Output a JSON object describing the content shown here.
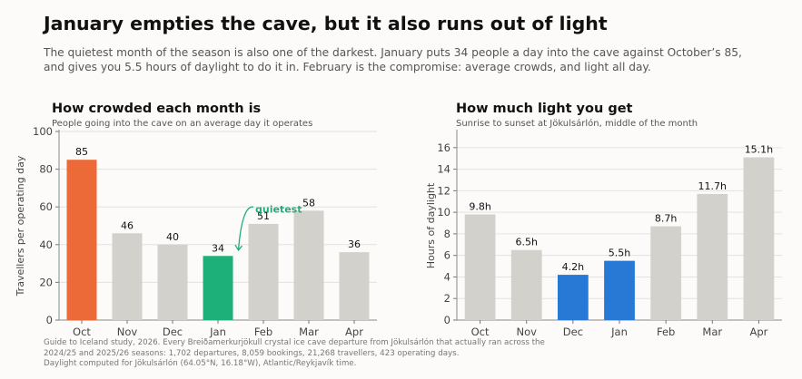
{
  "headline": "January empties the cave, but it also runs out of light",
  "dek": [
    "The quietest month of the season is also one of the darkest. January puts 34 people a day into the cave against October’s 85,",
    "and gives you 5.5 hours of daylight to do it in. February is the compromise: average crowds, and light all day."
  ],
  "footer": [
    "Guide to Iceland study, 2026. Every Breiðamerkurjökull crystal ice cave departure from Jökulsárlón that actually ran across the",
    "2024/25 and 2025/26 seasons: 1,702 departures, 8,059 bookings, 21,268 travellers, 423 operating days.",
    "Daylight computed for Jökulsárlón (64.05°N, 16.18°W), Atlantic/Reykjavík time."
  ],
  "colors": {
    "neutral": "#d3d1cc",
    "orange": "#ec6a37",
    "green": "#1db079",
    "blue": "#2878d6",
    "grid": "#e2e2e2"
  },
  "chart_data": [
    {
      "type": "bar",
      "title": "How crowded each month is",
      "subtitle": "People going into the cave on an average day it operates",
      "ylabel": "Travellers per operating day",
      "xlabel": "",
      "categories": [
        "Oct",
        "Nov",
        "Dec",
        "Jan",
        "Feb",
        "Mar",
        "Apr"
      ],
      "values": [
        85,
        46,
        40,
        34,
        51,
        58,
        36
      ],
      "value_labels": [
        "85",
        "46",
        "40",
        "34",
        "51",
        "58",
        "36"
      ],
      "highlight": {
        "Oct": "orange",
        "Jan": "green"
      },
      "annotation": {
        "text": "quietest",
        "points_to": "Jan"
      },
      "ylim": [
        0,
        100
      ],
      "yticks": [
        0,
        20,
        40,
        60,
        80,
        100
      ],
      "grid": true,
      "legend": "none"
    },
    {
      "type": "bar",
      "title": "How much light you get",
      "subtitle": "Sunrise to sunset at Jökulsárlón, middle of the month",
      "ylabel": "Hours of daylight",
      "xlabel": "",
      "categories": [
        "Oct",
        "Nov",
        "Dec",
        "Jan",
        "Feb",
        "Mar",
        "Apr"
      ],
      "values": [
        9.8,
        6.5,
        4.2,
        5.5,
        8.7,
        11.7,
        15.1
      ],
      "value_labels": [
        "9.8h",
        "6.5h",
        "4.2h",
        "5.5h",
        "8.7h",
        "11.7h",
        "15.1h"
      ],
      "highlight": {
        "Dec": "blue",
        "Jan": "blue"
      },
      "ylim": [
        0,
        17.5
      ],
      "yticks": [
        0,
        2,
        4,
        6,
        8,
        10,
        12,
        14,
        16
      ],
      "grid": true,
      "legend": "none"
    }
  ]
}
